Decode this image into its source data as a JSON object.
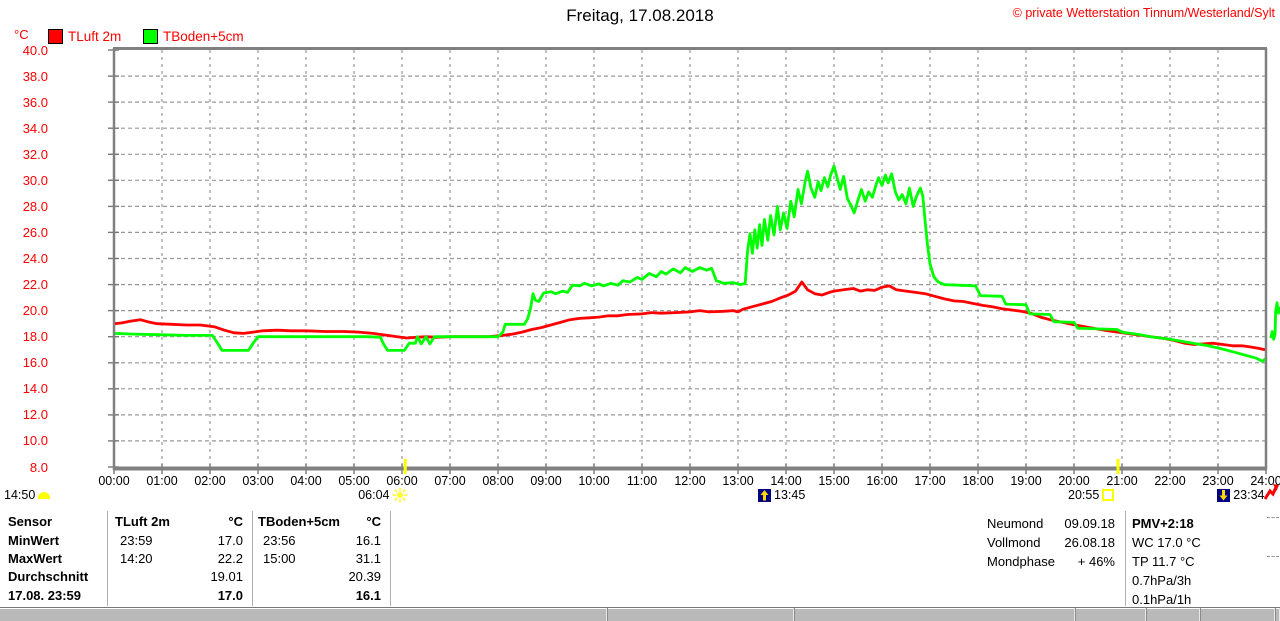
{
  "header": {
    "title": "Freitag, 17.08.2018",
    "copyright": "© private Wetterstation Tinnum/Westerland/Sylt"
  },
  "legend": {
    "series1": {
      "label": "TLuft 2m",
      "color": "#ff0000"
    },
    "series2": {
      "label": "TBoden+5cm",
      "color": "#00ff00"
    }
  },
  "colors": {
    "axis_label": "#ff0000",
    "grid": "#989898",
    "border": "#808080",
    "sun_marker": "#ffff00",
    "moon_marker_bg": "#000080"
  },
  "chart_data": {
    "type": "line",
    "title": "Freitag, 17.08.2018",
    "ylabel": "°C",
    "ylim": [
      8,
      40
    ],
    "ytick_step": 2,
    "x_hours_range": [
      0,
      24
    ],
    "grid": "dashed",
    "legend_position": "top-left",
    "xtick_labels": [
      "00:00",
      "01:00",
      "02:00",
      "03:00",
      "04:00",
      "05:00",
      "06:00",
      "07:00",
      "08:00",
      "09:00",
      "10:00",
      "11:00",
      "12:00",
      "13:00",
      "14:00",
      "15:00",
      "16:00",
      "17:00",
      "18:00",
      "19:00",
      "20:00",
      "21:00",
      "22:00",
      "23:00",
      "24:00"
    ],
    "series": [
      {
        "name": "TLuft 2m",
        "color": "#ff0000",
        "points": [
          [
            0,
            19.0
          ],
          [
            0.15,
            19.05
          ],
          [
            0.35,
            19.2
          ],
          [
            0.55,
            19.3
          ],
          [
            0.7,
            19.15
          ],
          [
            0.9,
            19.0
          ],
          [
            1.2,
            18.95
          ],
          [
            1.5,
            18.9
          ],
          [
            1.8,
            18.9
          ],
          [
            2.1,
            18.75
          ],
          [
            2.3,
            18.5
          ],
          [
            2.5,
            18.3
          ],
          [
            2.7,
            18.25
          ],
          [
            2.9,
            18.35
          ],
          [
            3.1,
            18.45
          ],
          [
            3.4,
            18.5
          ],
          [
            3.7,
            18.45
          ],
          [
            4.0,
            18.45
          ],
          [
            4.4,
            18.4
          ],
          [
            4.8,
            18.4
          ],
          [
            5.1,
            18.35
          ],
          [
            5.4,
            18.25
          ],
          [
            5.7,
            18.1
          ],
          [
            5.9,
            18.0
          ],
          [
            6.1,
            17.9
          ],
          [
            6.3,
            17.95
          ],
          [
            6.5,
            18.0
          ],
          [
            6.7,
            17.95
          ],
          [
            7.0,
            18.0
          ],
          [
            7.4,
            18.0
          ],
          [
            7.8,
            18.0
          ],
          [
            8.1,
            18.1
          ],
          [
            8.3,
            18.2
          ],
          [
            8.5,
            18.35
          ],
          [
            8.7,
            18.55
          ],
          [
            8.9,
            18.7
          ],
          [
            9.1,
            18.9
          ],
          [
            9.3,
            19.1
          ],
          [
            9.5,
            19.3
          ],
          [
            9.7,
            19.4
          ],
          [
            9.9,
            19.45
          ],
          [
            10.1,
            19.5
          ],
          [
            10.3,
            19.6
          ],
          [
            10.5,
            19.6
          ],
          [
            10.7,
            19.7
          ],
          [
            11.0,
            19.75
          ],
          [
            11.2,
            19.85
          ],
          [
            11.4,
            19.8
          ],
          [
            11.7,
            19.85
          ],
          [
            12.0,
            19.9
          ],
          [
            12.2,
            20.0
          ],
          [
            12.4,
            19.9
          ],
          [
            12.7,
            19.95
          ],
          [
            12.9,
            20.0
          ],
          [
            13.0,
            19.9
          ],
          [
            13.1,
            20.1
          ],
          [
            13.3,
            20.3
          ],
          [
            13.5,
            20.5
          ],
          [
            13.7,
            20.7
          ],
          [
            13.9,
            21.0
          ],
          [
            14.05,
            21.2
          ],
          [
            14.2,
            21.5
          ],
          [
            14.33,
            22.2
          ],
          [
            14.45,
            21.6
          ],
          [
            14.6,
            21.3
          ],
          [
            14.75,
            21.2
          ],
          [
            14.9,
            21.4
          ],
          [
            15.0,
            21.5
          ],
          [
            15.2,
            21.6
          ],
          [
            15.4,
            21.7
          ],
          [
            15.55,
            21.5
          ],
          [
            15.7,
            21.6
          ],
          [
            15.85,
            21.55
          ],
          [
            16.0,
            21.8
          ],
          [
            16.15,
            21.9
          ],
          [
            16.3,
            21.6
          ],
          [
            16.5,
            21.5
          ],
          [
            16.7,
            21.4
          ],
          [
            16.9,
            21.3
          ],
          [
            17.1,
            21.1
          ],
          [
            17.3,
            20.9
          ],
          [
            17.5,
            20.75
          ],
          [
            17.7,
            20.7
          ],
          [
            17.9,
            20.55
          ],
          [
            18.1,
            20.4
          ],
          [
            18.3,
            20.3
          ],
          [
            18.5,
            20.15
          ],
          [
            18.7,
            20.05
          ],
          [
            18.9,
            19.95
          ],
          [
            19.1,
            19.8
          ],
          [
            19.3,
            19.5
          ],
          [
            19.5,
            19.3
          ],
          [
            19.7,
            19.15
          ],
          [
            19.9,
            19.0
          ],
          [
            20.1,
            18.85
          ],
          [
            20.4,
            18.65
          ],
          [
            20.7,
            18.45
          ],
          [
            21.0,
            18.3
          ],
          [
            21.3,
            18.15
          ],
          [
            21.6,
            18.0
          ],
          [
            21.9,
            17.85
          ],
          [
            22.1,
            17.7
          ],
          [
            22.3,
            17.5
          ],
          [
            22.5,
            17.4
          ],
          [
            22.7,
            17.45
          ],
          [
            22.9,
            17.5
          ],
          [
            23.1,
            17.4
          ],
          [
            23.3,
            17.3
          ],
          [
            23.5,
            17.3
          ],
          [
            23.7,
            17.2
          ],
          [
            23.85,
            17.1
          ],
          [
            23.98,
            17.0
          ]
        ]
      },
      {
        "name": "TBoden+5cm",
        "color": "#00ff00",
        "points": [
          [
            0,
            18.25
          ],
          [
            0.4,
            18.2
          ],
          [
            0.9,
            18.15
          ],
          [
            1.5,
            18.1
          ],
          [
            2.05,
            18.1
          ],
          [
            2.15,
            17.55
          ],
          [
            2.25,
            16.95
          ],
          [
            2.8,
            16.95
          ],
          [
            2.9,
            17.5
          ],
          [
            3.0,
            18.0
          ],
          [
            3.6,
            18.0
          ],
          [
            4.2,
            18.0
          ],
          [
            4.8,
            18.0
          ],
          [
            5.3,
            18.0
          ],
          [
            5.55,
            17.95
          ],
          [
            5.62,
            17.4
          ],
          [
            5.7,
            16.95
          ],
          [
            6.05,
            16.95
          ],
          [
            6.15,
            17.5
          ],
          [
            6.28,
            17.5
          ],
          [
            6.32,
            18.0
          ],
          [
            6.4,
            17.45
          ],
          [
            6.5,
            18.0
          ],
          [
            6.58,
            17.45
          ],
          [
            6.68,
            18.0
          ],
          [
            7.0,
            18.0
          ],
          [
            7.6,
            18.0
          ],
          [
            8.0,
            18.0
          ],
          [
            8.1,
            18.35
          ],
          [
            8.15,
            18.95
          ],
          [
            8.55,
            18.95
          ],
          [
            8.62,
            19.4
          ],
          [
            8.68,
            20.2
          ],
          [
            8.73,
            21.3
          ],
          [
            8.78,
            20.8
          ],
          [
            8.85,
            20.7
          ],
          [
            8.95,
            21.35
          ],
          [
            9.1,
            21.45
          ],
          [
            9.2,
            21.3
          ],
          [
            9.35,
            21.5
          ],
          [
            9.45,
            21.4
          ],
          [
            9.55,
            21.95
          ],
          [
            9.7,
            21.9
          ],
          [
            9.8,
            22.1
          ],
          [
            9.95,
            21.9
          ],
          [
            10.1,
            22.05
          ],
          [
            10.2,
            21.9
          ],
          [
            10.35,
            22.1
          ],
          [
            10.5,
            21.95
          ],
          [
            10.6,
            22.3
          ],
          [
            10.75,
            22.2
          ],
          [
            10.9,
            22.55
          ],
          [
            11.0,
            22.4
          ],
          [
            11.15,
            22.85
          ],
          [
            11.3,
            22.6
          ],
          [
            11.4,
            23.0
          ],
          [
            11.5,
            22.8
          ],
          [
            11.65,
            23.2
          ],
          [
            11.8,
            22.9
          ],
          [
            11.9,
            23.3
          ],
          [
            12.05,
            23.0
          ],
          [
            12.2,
            23.3
          ],
          [
            12.35,
            23.1
          ],
          [
            12.45,
            23.25
          ],
          [
            12.55,
            22.3
          ],
          [
            12.7,
            22.1
          ],
          [
            12.9,
            22.15
          ],
          [
            13.05,
            22.0
          ],
          [
            13.15,
            22.1
          ],
          [
            13.2,
            24.6
          ],
          [
            13.25,
            25.9
          ],
          [
            13.3,
            24.4
          ],
          [
            13.35,
            26.2
          ],
          [
            13.4,
            24.8
          ],
          [
            13.45,
            26.6
          ],
          [
            13.5,
            25.0
          ],
          [
            13.55,
            27.0
          ],
          [
            13.62,
            25.4
          ],
          [
            13.68,
            27.3
          ],
          [
            13.75,
            25.8
          ],
          [
            13.82,
            28.0
          ],
          [
            13.88,
            26.2
          ],
          [
            13.95,
            27.5
          ],
          [
            14.02,
            26.3
          ],
          [
            14.1,
            28.4
          ],
          [
            14.17,
            27.2
          ],
          [
            14.25,
            29.3
          ],
          [
            14.32,
            28.2
          ],
          [
            14.4,
            29.9
          ],
          [
            14.45,
            30.7
          ],
          [
            14.52,
            29.4
          ],
          [
            14.6,
            28.7
          ],
          [
            14.67,
            29.9
          ],
          [
            14.73,
            29.2
          ],
          [
            14.8,
            30.2
          ],
          [
            14.87,
            29.5
          ],
          [
            14.93,
            30.4
          ],
          [
            15.0,
            31.1
          ],
          [
            15.07,
            30.1
          ],
          [
            15.13,
            29.3
          ],
          [
            15.2,
            30.3
          ],
          [
            15.28,
            28.6
          ],
          [
            15.35,
            28.1
          ],
          [
            15.42,
            27.5
          ],
          [
            15.5,
            28.5
          ],
          [
            15.57,
            29.3
          ],
          [
            15.65,
            28.4
          ],
          [
            15.72,
            29.1
          ],
          [
            15.8,
            28.7
          ],
          [
            15.87,
            29.6
          ],
          [
            15.93,
            30.2
          ],
          [
            16.0,
            29.6
          ],
          [
            16.07,
            30.4
          ],
          [
            16.13,
            29.8
          ],
          [
            16.2,
            30.5
          ],
          [
            16.28,
            29.1
          ],
          [
            16.35,
            28.5
          ],
          [
            16.42,
            28.9
          ],
          [
            16.5,
            28.2
          ],
          [
            16.57,
            29.4
          ],
          [
            16.65,
            28.0
          ],
          [
            16.72,
            28.8
          ],
          [
            16.8,
            29.4
          ],
          [
            16.85,
            28.8
          ],
          [
            16.9,
            26.8
          ],
          [
            16.95,
            25.0
          ],
          [
            17.0,
            23.6
          ],
          [
            17.08,
            22.6
          ],
          [
            17.17,
            22.2
          ],
          [
            17.3,
            22.0
          ],
          [
            17.6,
            21.95
          ],
          [
            17.95,
            21.9
          ],
          [
            18.05,
            21.15
          ],
          [
            18.5,
            21.1
          ],
          [
            18.58,
            20.5
          ],
          [
            19.0,
            20.45
          ],
          [
            19.08,
            19.75
          ],
          [
            19.5,
            19.7
          ],
          [
            19.58,
            19.15
          ],
          [
            20.0,
            19.1
          ],
          [
            20.08,
            18.65
          ],
          [
            20.5,
            18.6
          ],
          [
            20.9,
            18.55
          ],
          [
            21.0,
            18.35
          ],
          [
            21.3,
            18.2
          ],
          [
            21.6,
            18.0
          ],
          [
            22.0,
            17.8
          ],
          [
            22.4,
            17.55
          ],
          [
            22.8,
            17.3
          ],
          [
            23.1,
            17.05
          ],
          [
            23.35,
            16.8
          ],
          [
            23.6,
            16.55
          ],
          [
            23.8,
            16.35
          ],
          [
            23.93,
            16.1
          ],
          [
            24.0,
            16.35
          ]
        ]
      }
    ],
    "edge_fragment": {
      "color": "#00ff00",
      "points": [
        [
          24.1,
          17.9
        ],
        [
          24.13,
          18.4
        ],
        [
          24.16,
          17.8
        ],
        [
          24.19,
          18.2
        ],
        [
          24.2,
          19.9
        ],
        [
          24.23,
          20.6
        ],
        [
          24.26,
          19.8
        ],
        [
          24.28,
          20.3
        ]
      ]
    },
    "markers": {
      "moonrise_prev": {
        "time_label": "14:50"
      },
      "sunrise": {
        "time_label": "06:04",
        "hour": 6.067
      },
      "moonrise": {
        "time_label": "13:45",
        "hour": 13.75
      },
      "sunset": {
        "time_label": "20:55",
        "hour": 20.917
      },
      "moonset": {
        "time_label": "23:34",
        "hour": 23.567
      }
    }
  },
  "stats_table": {
    "header": {
      "sensor": "Sensor",
      "s1_name": "TLuft 2m",
      "s1_unit": "°C",
      "s2_name": "TBoden+5cm",
      "s2_unit": "°C"
    },
    "min": {
      "label": "MinWert",
      "s1_time": "23:59",
      "s1_val": "17.0",
      "s2_time": "23:56",
      "s2_val": "16.1"
    },
    "max": {
      "label": "MaxWert",
      "s1_time": "14:20",
      "s1_val": "22.2",
      "s2_time": "15:00",
      "s2_val": "31.1"
    },
    "avg": {
      "label": "Durchschnitt",
      "s1_val": "19.01",
      "s2_val": "20.39"
    },
    "last": {
      "label": "17.08. 23:59",
      "s1_val": "17.0",
      "s2_val": "16.1"
    }
  },
  "moon_info": {
    "neumond": {
      "label": "Neumond",
      "value": "09.09.18"
    },
    "vollmond": {
      "label": "Vollmond",
      "value": "26.08.18"
    },
    "mondphase": {
      "label": "Mondphase",
      "value": "+ 46%"
    }
  },
  "conditions": {
    "pmv": "PMV+2:18",
    "wc": "WC 17.0 °C",
    "tp": "TP 11.7 °C",
    "p3h": "0.7hPa/3h",
    "p1h": "0.1hPa/1h"
  }
}
